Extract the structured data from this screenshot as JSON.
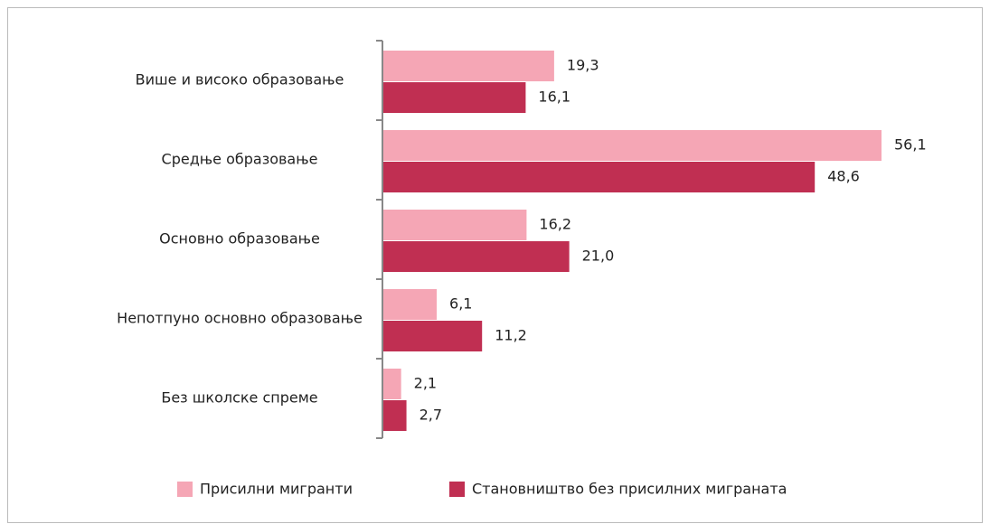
{
  "chart_data": {
    "type": "hbar",
    "categories": [
      "Више и високо образовање",
      "Средње образовање",
      "Основно образовање",
      "Непотпуно основно образовање",
      "Без школске спреме"
    ],
    "series": [
      {
        "name": "Присилни мигранти",
        "color": "#f5a6b5",
        "values": [
          19.3,
          56.1,
          16.2,
          6.1,
          2.1
        ],
        "value_labels": [
          "19,3",
          "56,1",
          "16,2",
          "6,1",
          "2,1"
        ]
      },
      {
        "name": "Становништво без присилних миграната",
        "color": "#c02f52",
        "values": [
          16.1,
          48.6,
          21.0,
          11.2,
          2.7
        ],
        "value_labels": [
          "16,1",
          "48,6",
          "21,0",
          "11,2",
          "2,7"
        ]
      }
    ],
    "legend": "bottom"
  }
}
